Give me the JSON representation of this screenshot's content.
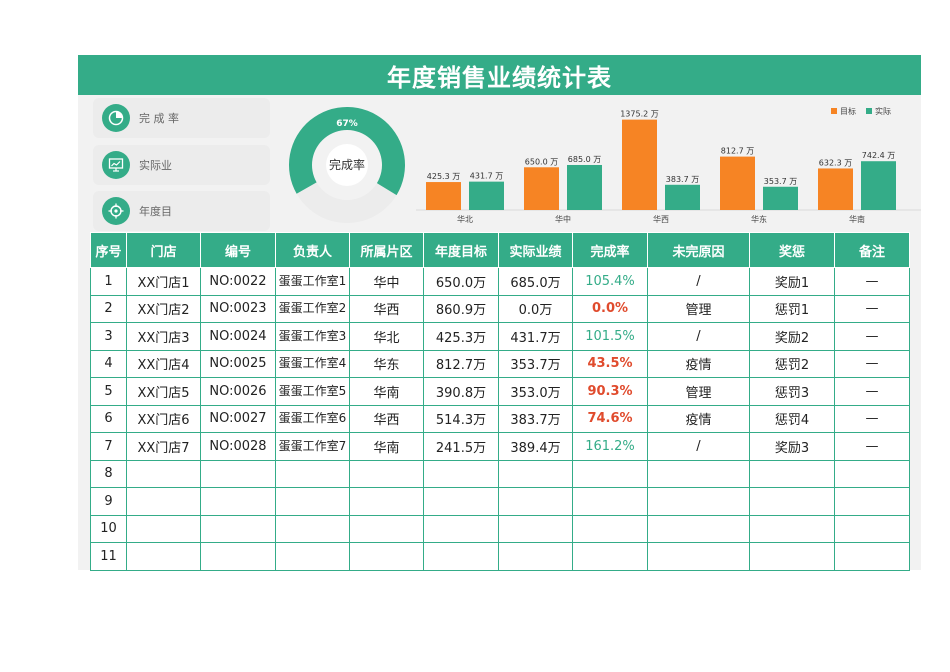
{
  "title": "年度销售业绩统计表",
  "kpis": [
    {
      "label": "完 成 率",
      "icon": "pie-icon"
    },
    {
      "label": "实际业",
      "icon": "chart-board-icon"
    },
    {
      "label": "年度目",
      "icon": "target-icon"
    }
  ],
  "donut": {
    "value_label": "67%",
    "center_label": "完成率",
    "fraction": 0.67
  },
  "colors": {
    "accent": "#34ac88",
    "orange": "#f68424",
    "bad": "#e04b2d"
  },
  "chart_data": {
    "type": "bar",
    "categories": [
      "华北",
      "华中",
      "华西",
      "华东",
      "华南"
    ],
    "series": [
      {
        "name": "目标",
        "values": [
          425.3,
          650.0,
          1375.2,
          812.7,
          632.3
        ],
        "labels": [
          "425.3 万",
          "650.0 万",
          "1375.2 万",
          "812.7 万",
          "632.3 万"
        ],
        "color": "#f68424"
      },
      {
        "name": "实际",
        "values": [
          431.7,
          685.0,
          383.7,
          353.7,
          742.4
        ],
        "labels": [
          "431.7 万",
          "685.0 万",
          "383.7 万",
          "353.7 万",
          "742.4 万"
        ],
        "color": "#34ac88"
      }
    ],
    "legend": "top-right",
    "ylim": [
      0,
      1400
    ]
  },
  "table": {
    "headers": [
      "序号",
      "门店",
      "编号",
      "负责人",
      "所属片区",
      "年度目标",
      "实际业绩",
      "完成率",
      "未完原因",
      "奖惩",
      "备注"
    ],
    "rows": [
      [
        "1",
        "XX门店1",
        "NO:0022",
        "蛋蛋工作室1",
        "华中",
        "650.0万",
        "685.0万",
        "105.4%",
        "/",
        "奖励1",
        "—"
      ],
      [
        "2",
        "XX门店2",
        "NO:0023",
        "蛋蛋工作室2",
        "华西",
        "860.9万",
        "0.0万",
        "0.0%",
        "管理",
        "惩罚1",
        "—"
      ],
      [
        "3",
        "XX门店3",
        "NO:0024",
        "蛋蛋工作室3",
        "华北",
        "425.3万",
        "431.7万",
        "101.5%",
        "/",
        "奖励2",
        "—"
      ],
      [
        "4",
        "XX门店4",
        "NO:0025",
        "蛋蛋工作室4",
        "华东",
        "812.7万",
        "353.7万",
        "43.5%",
        "疫情",
        "惩罚2",
        "—"
      ],
      [
        "5",
        "XX门店5",
        "NO:0026",
        "蛋蛋工作室5",
        "华南",
        "390.8万",
        "353.0万",
        "90.3%",
        "管理",
        "惩罚3",
        "—"
      ],
      [
        "6",
        "XX门店6",
        "NO:0027",
        "蛋蛋工作室6",
        "华西",
        "514.3万",
        "383.7万",
        "74.6%",
        "疫情",
        "惩罚4",
        "—"
      ],
      [
        "7",
        "XX门店7",
        "NO:0028",
        "蛋蛋工作室7",
        "华南",
        "241.5万",
        "389.4万",
        "161.2%",
        "/",
        "奖励3",
        "—"
      ],
      [
        "8",
        "",
        "",
        "",
        "",
        "",
        "",
        "",
        "",
        "",
        ""
      ],
      [
        "9",
        "",
        "",
        "",
        "",
        "",
        "",
        "",
        "",
        "",
        ""
      ],
      [
        "10",
        "",
        "",
        "",
        "",
        "",
        "",
        "",
        "",
        "",
        ""
      ],
      [
        "11",
        "",
        "",
        "",
        "",
        "",
        "",
        "",
        "",
        "",
        ""
      ]
    ],
    "status": [
      "good",
      "bad",
      "good",
      "bad",
      "bad",
      "bad",
      "good",
      "",
      "",
      "",
      ""
    ]
  }
}
